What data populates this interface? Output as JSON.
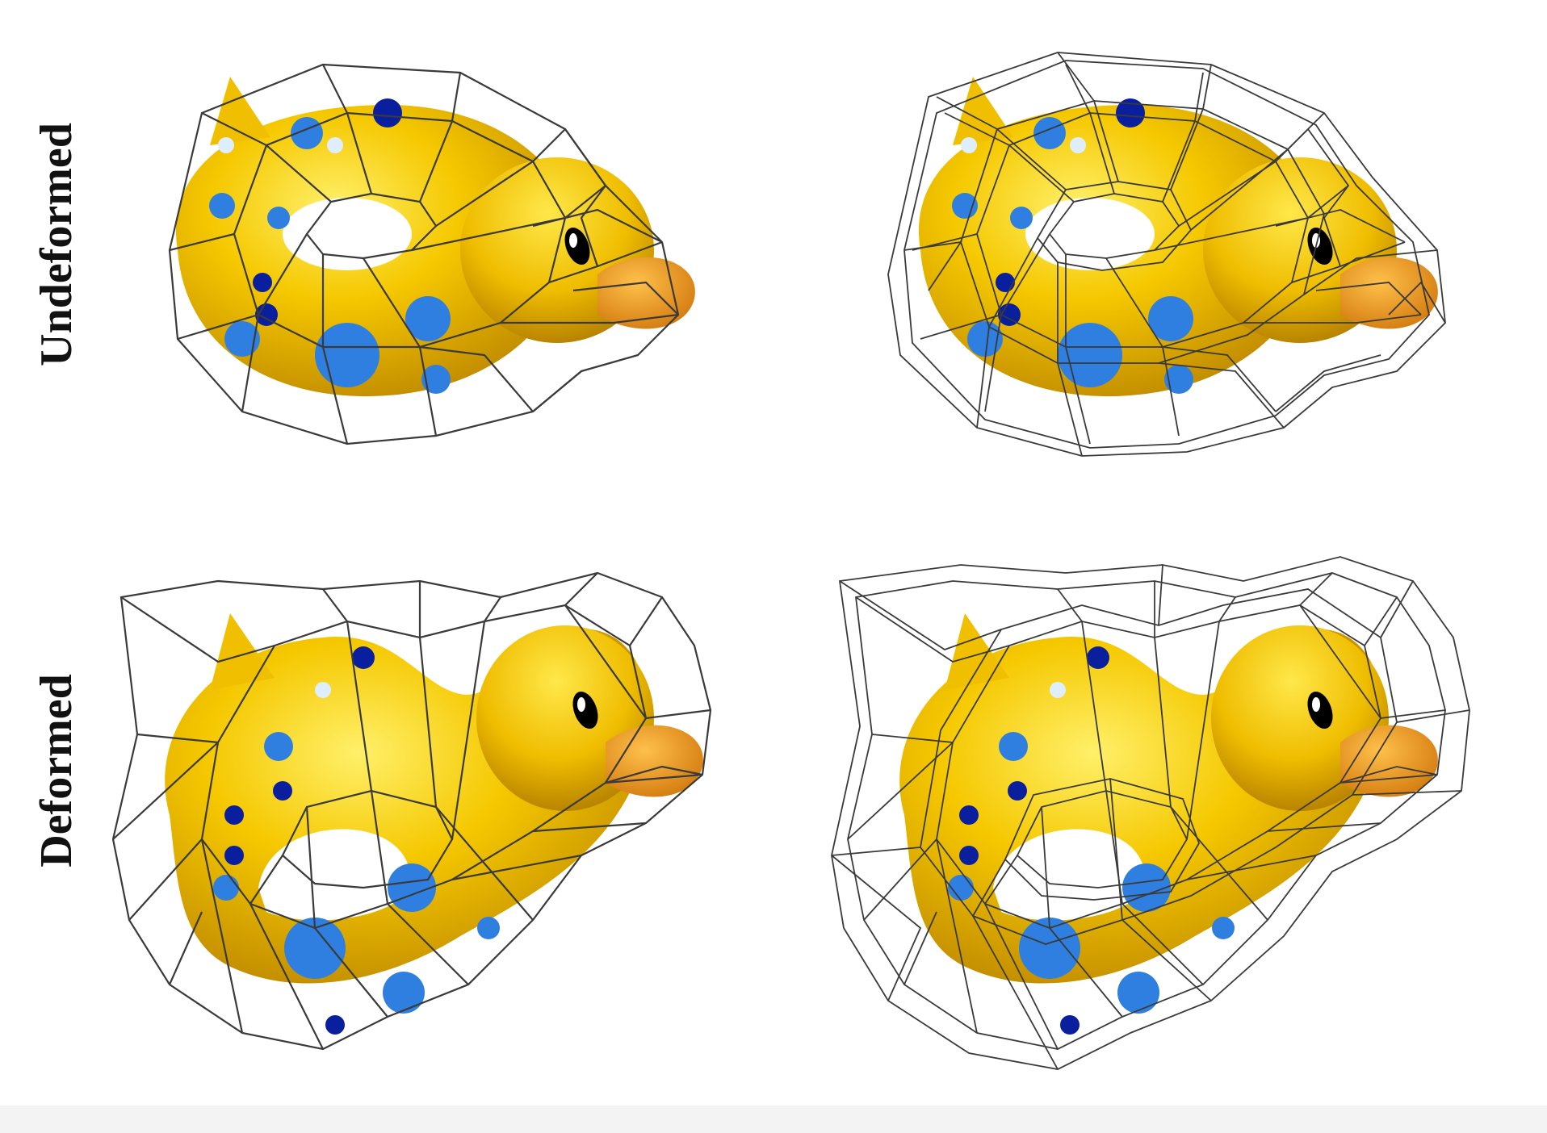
{
  "rows": {
    "top_label": "Undeformed",
    "bottom_label": "Deformed"
  },
  "panels": [
    {
      "name": "undeformed-coarse-cage",
      "row": "Undeformed",
      "cage": "coarse"
    },
    {
      "name": "undeformed-dense-cage",
      "row": "Undeformed",
      "cage": "dense"
    },
    {
      "name": "deformed-coarse-cage",
      "row": "Deformed",
      "cage": "coarse"
    },
    {
      "name": "deformed-dense-cage",
      "row": "Deformed",
      "cage": "dense"
    }
  ],
  "colors": {
    "body": "#f2c200",
    "body_highlight": "#ffe03a",
    "body_shade": "#c99500",
    "beak": "#f0a020",
    "spot_light": "#2f7fe0",
    "spot_dark": "#0a1f9e",
    "spot_pale": "#dfeefc",
    "cage": "#3a3a3a"
  }
}
